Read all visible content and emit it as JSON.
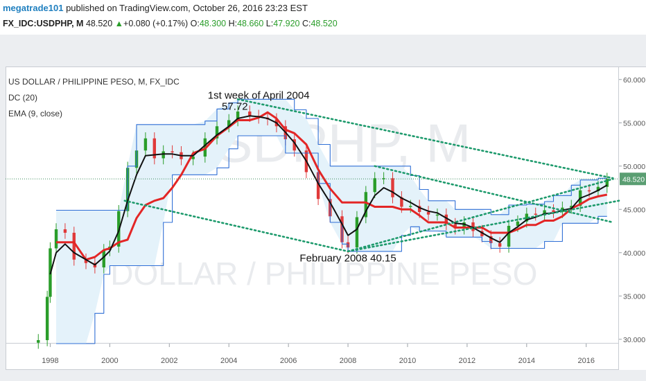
{
  "header": {
    "user": "megatrade101",
    "published_text": "published on TradingView.com, October 26, 2016 23:23 EST"
  },
  "quote": {
    "symbol": "FX_IDC:USDPHP, M",
    "price": "48.520",
    "change": "+0.080 (+0.17%)",
    "open_label": "O:",
    "open": "48.300",
    "high_label": "H:",
    "high": "48.660",
    "low_label": "L:",
    "low": "47.920",
    "close_label": "C:",
    "close": "48.520"
  },
  "legend": {
    "title": "US DOLLAR / PHILIPPINE PESO, M, FX_IDC",
    "dc": "DC (20)",
    "ema": "EMA (9, close)"
  },
  "watermark": {
    "symbol": "USDPHP, M",
    "name": "US DOLLAR / PHILIPPINE PESO"
  },
  "annotations": [
    {
      "text": "1st week of April 2004",
      "x": 2005.0,
      "y": 57.8
    },
    {
      "text": "57.72",
      "x": 2004.2,
      "y": 56.5
    },
    {
      "text": "February 2008 40.15",
      "x": 2008.0,
      "y": 39.0
    }
  ],
  "current_price_label": "48.520",
  "colors": {
    "up": "#2a9d2a",
    "down": "#e03a3a",
    "ema": "#111111",
    "dc_basis": "#e32626",
    "dc_band": "#2f6fd6",
    "dc_fill": "#e4f2fa",
    "trendline": "#1d9a6c",
    "price_line": "#3c8c5a",
    "price_tag": "#5a9e72"
  },
  "chart_data": {
    "type": "line",
    "title": "US DOLLAR / PHILIPPINE PESO, M, FX_IDC",
    "xlim": [
      1996.5,
      2017.1
    ],
    "ylim": [
      29.5,
      61.5
    ],
    "x_ticks": [
      1998,
      2000,
      2002,
      2004,
      2006,
      2008,
      2010,
      2012,
      2014,
      2016
    ],
    "x_tick_labels": [
      "1998",
      "2000",
      "2002",
      "2004",
      "2006",
      "2008",
      "2010",
      "2012",
      "2014",
      "2016"
    ],
    "y_ticks": [
      30,
      35,
      40,
      45,
      50,
      55,
      60
    ],
    "y_tick_labels": [
      "30.000",
      "35.000",
      "40.000",
      "45.000",
      "50.000",
      "55.000",
      "60.000"
    ],
    "grid": false,
    "x": [
      1997.6,
      1997.9,
      1998.0,
      1998.2,
      1998.5,
      1998.8,
      1999.2,
      1999.5,
      1999.8,
      2000.0,
      2000.3,
      2000.6,
      2000.9,
      2001.2,
      2001.5,
      2001.8,
      2002.1,
      2002.4,
      2002.8,
      2003.2,
      2003.6,
      2004.0,
      2004.3,
      2004.7,
      2005.0,
      2005.3,
      2005.6,
      2005.9,
      2006.2,
      2006.6,
      2007.0,
      2007.4,
      2007.8,
      2008.0,
      2008.3,
      2008.6,
      2008.9,
      2009.2,
      2009.5,
      2009.8,
      2010.1,
      2010.4,
      2010.7,
      2011.0,
      2011.3,
      2011.6,
      2011.9,
      2012.2,
      2012.5,
      2012.8,
      2013.1,
      2013.4,
      2013.7,
      2014.0,
      2014.3,
      2014.6,
      2014.9,
      2015.2,
      2015.5,
      2015.8,
      2016.1,
      2016.4,
      2016.7
    ],
    "series": [
      {
        "name": "Close",
        "values": [
          29.9,
          34.9,
          40.5,
          42.7,
          42.3,
          39.2,
          38.8,
          38.3,
          40.3,
          40.7,
          44.8,
          49.8,
          51.8,
          53.2,
          50.9,
          51.7,
          51.6,
          50.8,
          51.1,
          53.2,
          54.6,
          55.3,
          56.3,
          55.8,
          55.6,
          55.4,
          54.6,
          53.1,
          51.8,
          49.3,
          46.2,
          44.2,
          41.2,
          40.6,
          44.1,
          47.0,
          48.6,
          48.6,
          46.4,
          45.3,
          45.4,
          44.7,
          44.4,
          44.4,
          43.3,
          42.8,
          43.5,
          42.5,
          41.9,
          41.1,
          40.7,
          43.1,
          43.6,
          44.5,
          44.4,
          44.9,
          44.7,
          45.2,
          45.4,
          47.2,
          47.1,
          47.6,
          48.52
        ]
      },
      {
        "name": "EMA (9, close)",
        "values": [
          null,
          null,
          37.5,
          40.0,
          41.0,
          40.0,
          39.2,
          38.6,
          39.5,
          40.2,
          42.5,
          46.0,
          49.0,
          51.2,
          51.3,
          51.4,
          51.4,
          51.2,
          51.2,
          52.4,
          53.6,
          54.6,
          55.5,
          55.8,
          55.7,
          55.5,
          55.0,
          53.9,
          52.7,
          50.6,
          48.0,
          45.8,
          43.3,
          42.0,
          42.7,
          44.8,
          46.6,
          47.5,
          47.0,
          46.3,
          45.8,
          45.2,
          44.8,
          44.6,
          44.0,
          43.4,
          43.3,
          42.9,
          42.3,
          41.7,
          41.2,
          42.3,
          43.0,
          43.8,
          44.1,
          44.5,
          44.6,
          44.9,
          45.1,
          46.3,
          46.7,
          47.2,
          47.8
        ]
      },
      {
        "name": "DC basis",
        "values": [
          null,
          null,
          null,
          41.2,
          41.2,
          41.2,
          39.2,
          39.5,
          40.3,
          40.5,
          41.2,
          41.5,
          44.0,
          45.5,
          46.0,
          46.3,
          47.5,
          49.0,
          51.5,
          52.0,
          53.5,
          54.5,
          55.3,
          55.3,
          55.6,
          56.2,
          55.5,
          54.2,
          53.8,
          52.5,
          49.6,
          47.4,
          45.8,
          45.8,
          45.8,
          45.8,
          45.3,
          45.3,
          45.3,
          45.0,
          45.0,
          44.3,
          43.5,
          43.5,
          43.5,
          42.9,
          42.9,
          42.9,
          42.9,
          42.3,
          42.3,
          42.3,
          42.7,
          43.2,
          43.2,
          43.7,
          43.7,
          44.2,
          45.1,
          45.6,
          46.2,
          46.5,
          46.7
        ]
      },
      {
        "name": "DC upper",
        "values": [
          null,
          null,
          null,
          44.9,
          44.9,
          44.9,
          44.9,
          44.9,
          44.9,
          44.9,
          44.9,
          50.0,
          54.8,
          54.8,
          54.8,
          54.8,
          54.8,
          54.8,
          54.8,
          55.2,
          56.6,
          57.3,
          57.72,
          57.72,
          57.72,
          57.72,
          57.72,
          57.72,
          56.5,
          55.5,
          52.5,
          50.0,
          50.0,
          50.0,
          50.0,
          50.0,
          50.0,
          50.0,
          50.0,
          50.0,
          48.9,
          47.3,
          46.0,
          46.0,
          46.0,
          45.0,
          45.0,
          45.0,
          45.0,
          44.4,
          44.4,
          45.5,
          45.5,
          45.6,
          45.6,
          45.9,
          46.6,
          46.6,
          47.8,
          48.4,
          48.4,
          48.6,
          48.6
        ]
      },
      {
        "name": "DC lower",
        "values": [
          null,
          null,
          null,
          29.5,
          29.5,
          29.5,
          29.5,
          33.0,
          37.5,
          38.5,
          38.5,
          38.5,
          38.5,
          38.5,
          38.5,
          43.5,
          49.0,
          49.0,
          49.0,
          49.0,
          49.8,
          52.0,
          53.5,
          53.5,
          53.5,
          53.5,
          53.5,
          51.5,
          51.5,
          51.5,
          48.0,
          43.5,
          41.0,
          40.15,
          40.15,
          40.15,
          40.15,
          40.15,
          40.15,
          42.0,
          43.0,
          42.5,
          42.5,
          42.5,
          41.8,
          41.8,
          41.8,
          41.8,
          41.3,
          40.5,
          40.5,
          40.5,
          40.5,
          40.5,
          40.5,
          41.3,
          41.3,
          43.4,
          43.4,
          43.4,
          43.4,
          44.2,
          44.2
        ]
      }
    ],
    "trendlines": [
      {
        "x1": 2004.3,
        "y1": 57.72,
        "x2": 2016.9,
        "y2": 48.6
      },
      {
        "x1": 2000.5,
        "y1": 46.0,
        "x2": 2008.0,
        "y2": 40.15
      },
      {
        "x1": 2008.0,
        "y1": 40.15,
        "x2": 2016.9,
        "y2": 48.5
      },
      {
        "x1": 2008.0,
        "y1": 40.15,
        "x2": 2017.1,
        "y2": 46.0
      },
      {
        "x1": 2008.9,
        "y1": 50.0,
        "x2": 2016.9,
        "y2": 43.5
      }
    ]
  }
}
